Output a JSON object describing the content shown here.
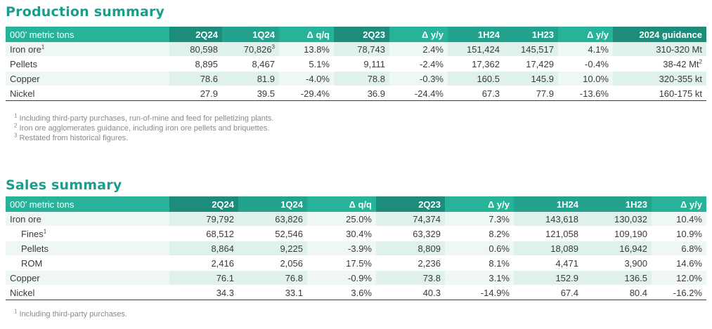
{
  "production": {
    "title": "Production summary",
    "headers": [
      "000' metric tons",
      "2Q24",
      "1Q24",
      "Δ q/q",
      "2Q23",
      "Δ y/y",
      "1H24",
      "1H23",
      "Δ y/y",
      "2024 guidance"
    ],
    "rows": [
      {
        "label": "Iron ore",
        "label_sup": "1",
        "cells": [
          "80,598",
          "70,826",
          "13.8%",
          "78,743",
          "2.4%",
          "151,424",
          "145,517",
          "4.1%",
          "310-320 Mt"
        ],
        "sup_1Q24": "3",
        "sup_guidance": ""
      },
      {
        "label": "Pellets",
        "label_sup": "",
        "cells": [
          "8,895",
          "8,467",
          "5.1%",
          "9,111",
          "-2.4%",
          "17,362",
          "17,429",
          "-0.4%",
          "38-42 Mt"
        ],
        "sup_1Q24": "",
        "sup_guidance": "2"
      },
      {
        "label": "Copper",
        "label_sup": "",
        "cells": [
          "78.6",
          "81.9",
          "-4.0%",
          "78.8",
          "-0.3%",
          "160.5",
          "145.9",
          "10.0%",
          "320-355 kt"
        ],
        "sup_1Q24": "",
        "sup_guidance": ""
      },
      {
        "label": "Nickel",
        "label_sup": "",
        "cells": [
          "27.9",
          "39.5",
          "-29.4%",
          "36.9",
          "-24.4%",
          "67.3",
          "77.9",
          "-13.6%",
          "160-175 kt"
        ],
        "sup_1Q24": "",
        "sup_guidance": ""
      }
    ],
    "footnotes": [
      {
        "num": "1",
        "text": "Including third-party purchases, run-of-mine and feed for pelletizing plants."
      },
      {
        "num": "2",
        "text": "Iron ore agglomerates guidance, including iron ore pellets and briquettes."
      },
      {
        "num": "3",
        "text": "Restated from historical figures."
      }
    ]
  },
  "sales": {
    "title": "Sales summary",
    "headers": [
      "000' metric tons",
      "2Q24",
      "1Q24",
      "Δ q/q",
      "2Q23",
      "Δ y/y",
      "1H24",
      "1H23",
      "Δ y/y"
    ],
    "rows": [
      {
        "label": "Iron ore",
        "label_sup": "",
        "indent": false,
        "cells": [
          "79,792",
          "63,826",
          "25.0%",
          "74,374",
          "7.3%",
          "143,618",
          "130,032",
          "10.4%"
        ]
      },
      {
        "label": "Fines",
        "label_sup": "1",
        "indent": true,
        "cells": [
          "68,512",
          "52,546",
          "30.4%",
          "63,329",
          "8.2%",
          "121,058",
          "109,190",
          "10.9%"
        ]
      },
      {
        "label": "Pellets",
        "label_sup": "",
        "indent": true,
        "cells": [
          "8,864",
          "9,225",
          "-3.9%",
          "8,809",
          "0.6%",
          "18,089",
          "16,942",
          "6.8%"
        ]
      },
      {
        "label": "ROM",
        "label_sup": "",
        "indent": true,
        "cells": [
          "2,416",
          "2,056",
          "17.5%",
          "2,236",
          "8.1%",
          "4,471",
          "3,900",
          "14.6%"
        ]
      },
      {
        "label": "Copper",
        "label_sup": "",
        "indent": false,
        "cells": [
          "76.1",
          "76.8",
          "-0.9%",
          "73.8",
          "3.1%",
          "152.9",
          "136.5",
          "12.0%"
        ]
      },
      {
        "label": "Nickel",
        "label_sup": "",
        "indent": false,
        "cells": [
          "34.3",
          "33.1",
          "3.6%",
          "40.3",
          "-14.9%",
          "67.4",
          "80.4",
          "-16.2%"
        ]
      }
    ],
    "footnotes": [
      {
        "num": "1",
        "text": "Including third-party purchases."
      }
    ]
  },
  "colors": {
    "title": "#1a9e8b",
    "header_light": "#27b39a",
    "header_dark": "#1d8c7a",
    "row_shade": "#dff1ec"
  }
}
